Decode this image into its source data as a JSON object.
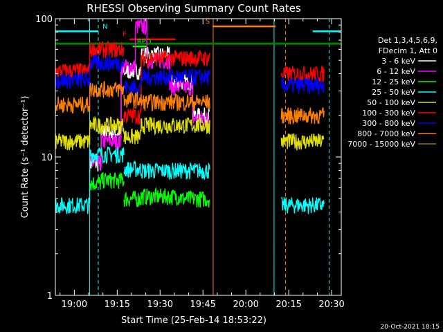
{
  "chart_data": {
    "type": "line",
    "title": "RHESSI Observing Summary Count Rates",
    "xlabel": "Start Time (25-Feb-14 18:53:22)",
    "ylabel": "Count Rate (s⁻¹ detector⁻¹)",
    "yscale": "log",
    "ylim": [
      1,
      100
    ],
    "xlim_minutes": [
      0,
      100
    ],
    "x_ticks": [
      {
        "m": 6.63,
        "label": "19:00"
      },
      {
        "m": 21.63,
        "label": "19:15"
      },
      {
        "m": 36.63,
        "label": "19:30"
      },
      {
        "m": 51.63,
        "label": "19:45"
      },
      {
        "m": 66.63,
        "label": "20:00"
      },
      {
        "m": 81.63,
        "label": "20:15"
      },
      {
        "m": 96.63,
        "label": "20:30"
      }
    ],
    "y_ticks": [
      {
        "v": 1,
        "label": "1"
      },
      {
        "v": 10,
        "label": "10"
      },
      {
        "v": 100,
        "label": "100"
      }
    ],
    "legend_header": [
      "Det 1,3,4,5,6,9,",
      "FDecim 1, Att 0"
    ],
    "series": [
      {
        "name": "3 - 6 keV",
        "color": "#ffffff",
        "key": "s1"
      },
      {
        "name": "6 - 12 keV",
        "color": "#ff00ff",
        "key": "s2"
      },
      {
        "name": "12 - 25 keV",
        "color": "#00ff00",
        "key": "s3"
      },
      {
        "name": "25 - 50 keV",
        "color": "#00ffff",
        "key": "s4"
      },
      {
        "name": "50 - 100 keV",
        "color": "#e0e000",
        "key": "s5"
      },
      {
        "name": "100 - 300 keV",
        "color": "#ff0000",
        "key": "s6"
      },
      {
        "name": "300 - 800 keV",
        "color": "#0000ff",
        "key": "s7"
      },
      {
        "name": "800 - 7000 keV",
        "color": "#ff8000",
        "key": "s8"
      },
      {
        "name": "7000 - 15000 keV",
        "color": "#808000",
        "key": "s9"
      }
    ],
    "segments": {
      "a": [
        0,
        24
      ],
      "b": [
        24,
        55
      ],
      "c": [
        79,
        94
      ]
    },
    "levels": {
      "s1": {
        "a": null,
        "b": [
          {
            "x": [
              12,
              16
            ],
            "y": 9
          },
          {
            "x": [
              16,
              23
            ],
            "y": 15
          },
          {
            "x": [
              23,
              30
            ],
            "y": 42
          },
          {
            "x": [
              30,
              40
            ],
            "y": 55
          },
          {
            "x": [
              40,
              48
            ],
            "y": 35
          },
          {
            "x": [
              48,
              54
            ],
            "y": 20
          }
        ],
        "c": null
      },
      "s2": {
        "a": null,
        "b": [
          {
            "x": [
              12,
              16
            ],
            "y": 9
          },
          {
            "x": [
              16,
              23
            ],
            "y": 13
          },
          {
            "x": [
              23,
              28
            ],
            "y": 45
          },
          {
            "x": [
              28,
              32
            ],
            "y": 88
          },
          {
            "x": [
              32,
              40
            ],
            "y": 50
          },
          {
            "x": [
              40,
              48
            ],
            "y": 32
          },
          {
            "x": [
              48,
              54
            ],
            "y": 19
          }
        ],
        "c": null
      },
      "s3": {
        "a": [
          {
            "x": [
              12,
              16
            ],
            "y": 6.5
          },
          {
            "x": [
              16,
              24
            ],
            "y": 6.8
          }
        ],
        "b": [
          {
            "x": [
              24,
              30
            ],
            "y": 5.0
          },
          {
            "x": [
              30,
              44
            ],
            "y": 5.2
          },
          {
            "x": [
              44,
              54
            ],
            "y": 5.0
          }
        ],
        "c": null
      },
      "s4": {
        "a": [
          {
            "x": [
              0,
              12
            ],
            "y": 4.5
          },
          {
            "x": [
              12,
              24
            ],
            "y": 10.5
          }
        ],
        "b": [
          {
            "x": [
              24,
              30
            ],
            "y": 8.2
          },
          {
            "x": [
              30,
              54
            ],
            "y": 8.0
          }
        ],
        "c": [
          {
            "x": [
              79,
              94
            ],
            "y": 4.5
          }
        ]
      },
      "s5": {
        "a": [
          {
            "x": [
              0,
              12
            ],
            "y": 13
          },
          {
            "x": [
              12,
              24
            ],
            "y": 17
          }
        ],
        "b": [
          {
            "x": [
              24,
              30
            ],
            "y": 14
          },
          {
            "x": [
              30,
              54
            ],
            "y": 17
          }
        ],
        "c": [
          {
            "x": [
              79,
              94
            ],
            "y": 13
          }
        ]
      },
      "s6": {
        "a": [
          {
            "x": [
              0,
              12
            ],
            "y": 42
          },
          {
            "x": [
              12,
              24
            ],
            "y": 60
          }
        ],
        "b": [
          {
            "x": [
              24,
              30
            ],
            "y": 20
          },
          {
            "x": [
              30,
              54
            ],
            "y": 52
          }
        ],
        "c": [
          {
            "x": [
              79,
              94
            ],
            "y": 40
          }
        ]
      },
      "s7": {
        "a": [
          {
            "x": [
              0,
              12
            ],
            "y": 36
          },
          {
            "x": [
              12,
              24
            ],
            "y": 48
          }
        ],
        "b": [
          {
            "x": [
              24,
              30
            ],
            "y": 32
          },
          {
            "x": [
              30,
              54
            ],
            "y": 38
          }
        ],
        "c": [
          {
            "x": [
              79,
              94
            ],
            "y": 33
          }
        ]
      },
      "s8": {
        "a": [
          {
            "x": [
              0,
              12
            ],
            "y": 24
          },
          {
            "x": [
              12,
              24
            ],
            "y": 31
          }
        ],
        "b": [
          {
            "x": [
              24,
              30
            ],
            "y": 26
          },
          {
            "x": [
              30,
              54
            ],
            "y": 25
          }
        ],
        "c": [
          {
            "x": [
              79,
              94
            ],
            "y": 20
          }
        ]
      },
      "s9": {
        "a": null,
        "b": null,
        "c": null
      }
    },
    "flags": [
      {
        "code": "N",
        "color": "#00ffff",
        "x0": 0,
        "x1": 15,
        "y": 81,
        "label_m": 16.5
      },
      {
        "code": "S",
        "color": "#ff8000",
        "x0": 55,
        "x1": 77,
        "y": 88,
        "label_m": 52.5
      },
      {
        "code": "N",
        "color": "#00ffff",
        "x0": 90,
        "x1": 100,
        "y": 81,
        "label_m": null
      },
      {
        "code": "F",
        "color": "#ff0000",
        "x0": 26,
        "x1": 42,
        "y": 71,
        "label_m": 23.5
      },
      {
        "code": "RPO",
        "color": "#00ff00",
        "x0": 27,
        "x1": 32,
        "y": 63,
        "label_m": 28.5
      },
      {
        "code": "",
        "color": "#008000",
        "x0": 0,
        "x1": 100,
        "y": 66,
        "label_m": null
      }
    ],
    "vlines": [
      {
        "m": 12.0,
        "color": "#00ffff",
        "dash": false
      },
      {
        "m": 15.0,
        "color": "#00ffff",
        "dash": true
      },
      {
        "m": 55.2,
        "color": "#ff8000",
        "dash": false
      },
      {
        "m": 76.5,
        "color": "#00ffff",
        "dash": false
      },
      {
        "m": 80.5,
        "color": "#ff8000",
        "dash": true
      },
      {
        "m": 95.8,
        "color": "#00ffff",
        "dash": true
      }
    ]
  },
  "footer": {
    "timestamp": "20-Oct-2021 18:15"
  }
}
